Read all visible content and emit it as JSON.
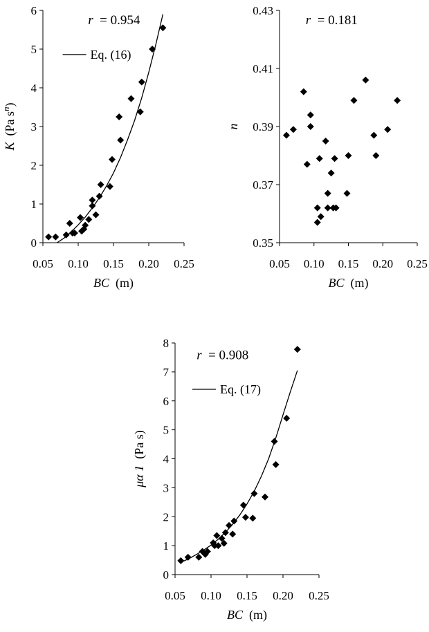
{
  "chart_data": [
    {
      "type": "scatter",
      "xlabel": {
        "var": "BC",
        "unit": "(m)"
      },
      "ylabel": {
        "var": "K",
        "unit": "(Pa s",
        "sup": "n",
        "close": ")"
      },
      "xlim": [
        0.05,
        0.25
      ],
      "ylim": [
        0,
        6
      ],
      "xticks": [
        "0.05",
        "0.10",
        "0.15",
        "0.20",
        "0.25"
      ],
      "yticks": [
        "0",
        "1",
        "2",
        "3",
        "4",
        "5",
        "6"
      ],
      "annotation": {
        "var": "r",
        "text": "= 0.954"
      },
      "legend": {
        "label": "Eq. (16)",
        "position": "top-left"
      },
      "series": [
        {
          "kind": "points",
          "marker": "diamond",
          "x": [
            0.058,
            0.068,
            0.083,
            0.088,
            0.092,
            0.095,
            0.103,
            0.105,
            0.108,
            0.11,
            0.115,
            0.12,
            0.12,
            0.125,
            0.13,
            0.132,
            0.145,
            0.148,
            0.158,
            0.16,
            0.175,
            0.188,
            0.19,
            0.205,
            0.22
          ],
          "y": [
            0.15,
            0.15,
            0.2,
            0.5,
            0.25,
            0.25,
            0.65,
            0.3,
            0.35,
            0.45,
            0.6,
            0.95,
            1.1,
            0.72,
            1.2,
            1.5,
            1.45,
            2.15,
            3.25,
            2.65,
            3.72,
            3.38,
            4.15,
            5.0,
            5.55
          ]
        },
        {
          "kind": "curve",
          "x": [
            0.07,
            0.08,
            0.09,
            0.1,
            0.11,
            0.12,
            0.13,
            0.14,
            0.15,
            0.16,
            0.17,
            0.18,
            0.19,
            0.2,
            0.21,
            0.22
          ],
          "y": [
            0.0,
            0.12,
            0.28,
            0.46,
            0.66,
            0.9,
            1.16,
            1.46,
            1.8,
            2.2,
            2.66,
            3.16,
            3.74,
            4.4,
            5.12,
            5.9
          ]
        }
      ]
    },
    {
      "type": "scatter",
      "xlabel": {
        "var": "BC",
        "unit": "(m)"
      },
      "ylabel": {
        "var": "n"
      },
      "xlim": [
        0.05,
        0.25
      ],
      "ylim": [
        0.35,
        0.43
      ],
      "xticks": [
        "0.05",
        "0.10",
        "0.15",
        "0.20",
        "0.25"
      ],
      "yticks": [
        "0.35",
        "0.37",
        "0.39",
        "0.41",
        "0.43"
      ],
      "annotation": {
        "var": "r",
        "text": "= 0.181"
      },
      "series": [
        {
          "kind": "points",
          "marker": "diamond",
          "x": [
            0.06,
            0.07,
            0.085,
            0.09,
            0.095,
            0.095,
            0.105,
            0.105,
            0.108,
            0.11,
            0.117,
            0.12,
            0.12,
            0.125,
            0.128,
            0.13,
            0.132,
            0.148,
            0.15,
            0.158,
            0.175,
            0.187,
            0.19,
            0.207,
            0.221
          ],
          "y": [
            0.387,
            0.389,
            0.402,
            0.377,
            0.394,
            0.39,
            0.362,
            0.357,
            0.379,
            0.359,
            0.385,
            0.367,
            0.362,
            0.374,
            0.362,
            0.379,
            0.362,
            0.367,
            0.38,
            0.399,
            0.406,
            0.387,
            0.38,
            0.389,
            0.399
          ]
        }
      ]
    },
    {
      "type": "scatter",
      "xlabel": {
        "var": "BC",
        "unit": "(m)"
      },
      "ylabel": {
        "var": "μα 1",
        "unit": "(Pa s)"
      },
      "xlim": [
        0.05,
        0.25
      ],
      "ylim": [
        0,
        8
      ],
      "xticks": [
        "0.05",
        "0.10",
        "0.15",
        "0.20",
        "0.25"
      ],
      "yticks": [
        "0",
        "1",
        "2",
        "3",
        "4",
        "5",
        "6",
        "7",
        "8"
      ],
      "annotation": {
        "var": "r",
        "text": "= 0.908"
      },
      "legend": {
        "label": "Eq. (17)",
        "position": "top-left"
      },
      "series": [
        {
          "kind": "points",
          "marker": "diamond",
          "x": [
            0.058,
            0.068,
            0.083,
            0.088,
            0.092,
            0.095,
            0.103,
            0.105,
            0.108,
            0.11,
            0.115,
            0.118,
            0.12,
            0.125,
            0.13,
            0.132,
            0.145,
            0.148,
            0.158,
            0.16,
            0.175,
            0.188,
            0.19,
            0.205,
            0.22
          ],
          "y": [
            0.48,
            0.6,
            0.6,
            0.8,
            0.7,
            0.8,
            1.1,
            1.0,
            1.35,
            1.0,
            1.25,
            1.08,
            1.45,
            1.7,
            1.4,
            1.85,
            2.4,
            1.98,
            1.95,
            2.8,
            2.68,
            4.6,
            3.8,
            5.4,
            7.78
          ]
        },
        {
          "kind": "curve",
          "x": [
            0.058,
            0.07,
            0.08,
            0.09,
            0.1,
            0.11,
            0.12,
            0.13,
            0.14,
            0.15,
            0.16,
            0.17,
            0.18,
            0.19,
            0.2,
            0.21,
            0.22
          ],
          "y": [
            0.42,
            0.56,
            0.7,
            0.85,
            1.02,
            1.22,
            1.46,
            1.74,
            2.06,
            2.44,
            2.88,
            3.4,
            4.0,
            4.72,
            5.52,
            6.3,
            7.05
          ]
        }
      ]
    }
  ]
}
